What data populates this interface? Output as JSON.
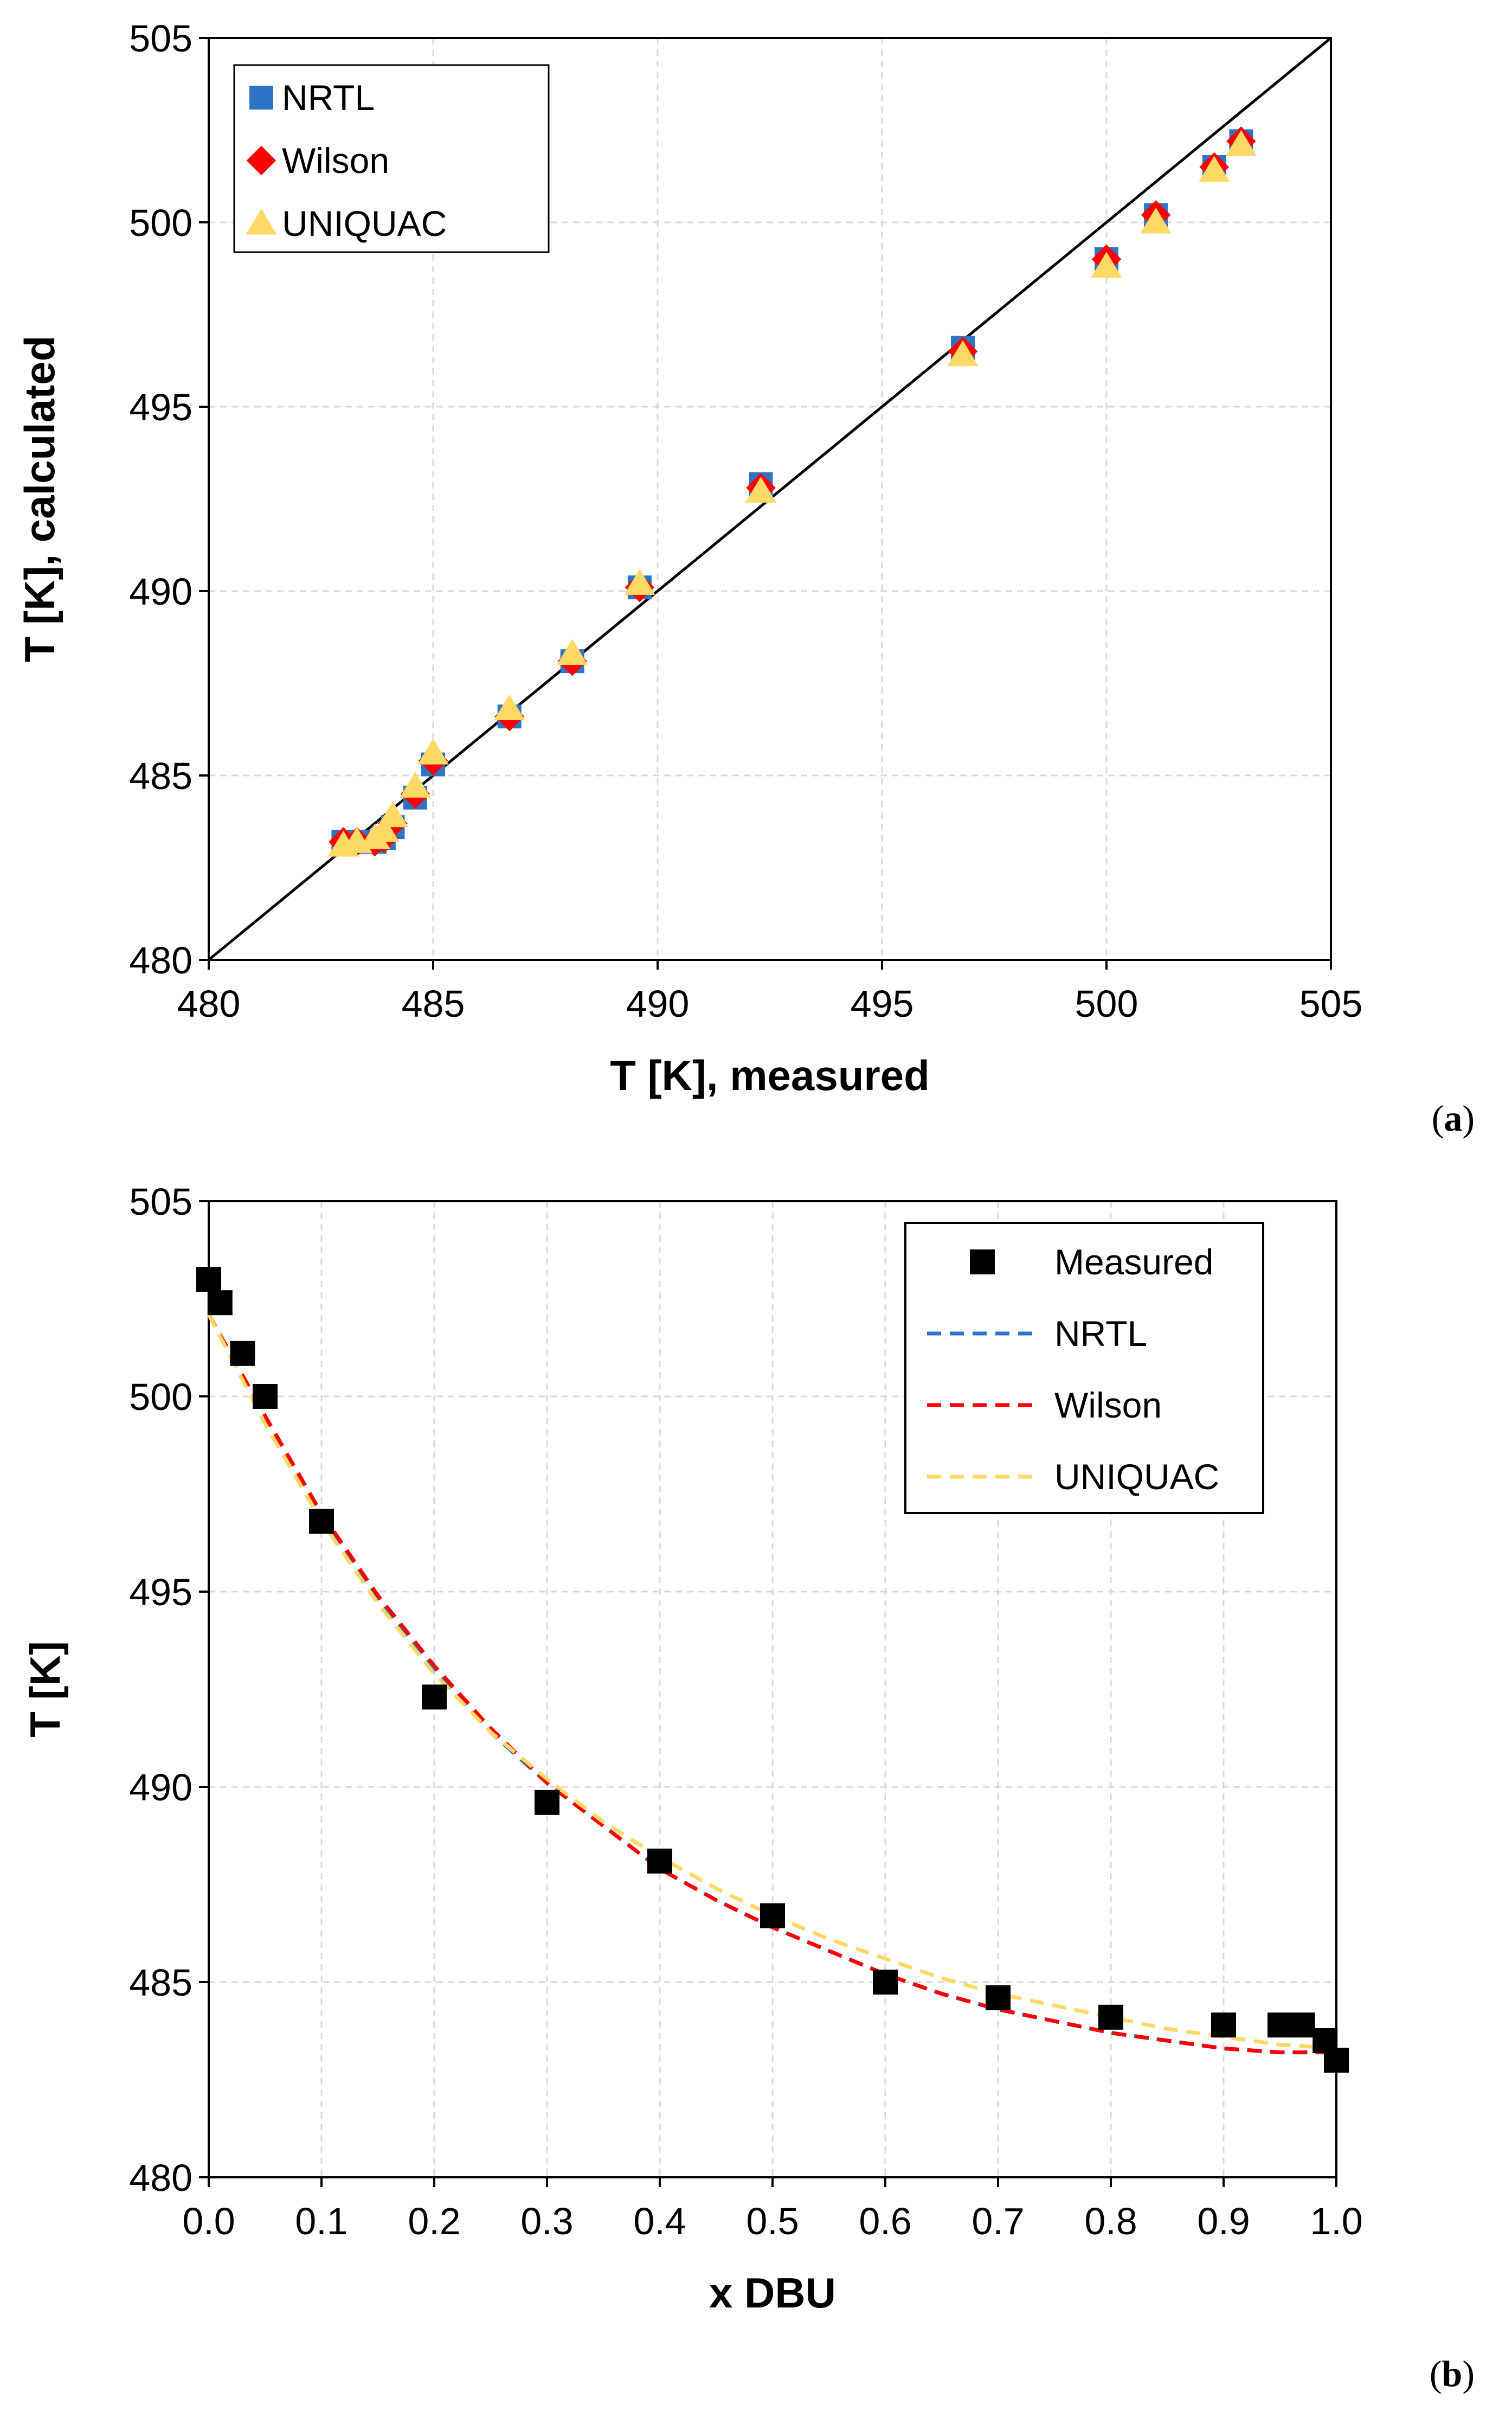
{
  "chart_data": [
    {
      "type": "scatter",
      "panel_label": "a",
      "xlabel": "T [K], measured",
      "ylabel": "T [K], calculated",
      "xlim": [
        480,
        505
      ],
      "ylim": [
        480,
        505
      ],
      "xticks": [
        "480",
        "485",
        "490",
        "495",
        "500",
        "505"
      ],
      "yticks": [
        "480",
        "485",
        "490",
        "495",
        "500",
        "505"
      ],
      "grid": true,
      "legend_position": "top-left",
      "reference_line": {
        "x": [
          480,
          505
        ],
        "y": [
          480,
          505
        ],
        "color": "#000000"
      },
      "series": [
        {
          "name": "NRTL",
          "marker": "square",
          "color": "#2e75c6",
          "x": [
            483.0,
            483.3,
            483.7,
            483.9,
            484.1,
            484.6,
            485.0,
            486.7,
            488.1,
            489.6,
            492.3,
            496.8,
            500.0,
            501.1,
            502.4,
            503.0
          ],
          "y": [
            483.2,
            483.2,
            483.2,
            483.3,
            483.6,
            484.4,
            485.3,
            486.6,
            488.1,
            490.1,
            492.9,
            496.6,
            499.0,
            500.2,
            501.5,
            502.2
          ]
        },
        {
          "name": "Wilson",
          "marker": "diamond",
          "color": "#ff0000",
          "x": [
            483.0,
            483.3,
            483.7,
            483.9,
            484.1,
            484.6,
            485.0,
            486.7,
            488.1,
            489.6,
            492.3,
            496.8,
            500.0,
            501.1,
            502.4,
            503.0
          ],
          "y": [
            483.2,
            483.2,
            483.2,
            483.3,
            483.7,
            484.5,
            485.4,
            486.6,
            488.1,
            490.1,
            492.8,
            496.5,
            499.0,
            500.2,
            501.5,
            502.2
          ]
        },
        {
          "name": "UNIQUAC",
          "marker": "triangle",
          "color": "#ffd966",
          "x": [
            483.0,
            483.3,
            483.7,
            483.9,
            484.1,
            484.6,
            485.0,
            486.7,
            488.1,
            489.6,
            492.3,
            496.8,
            500.0,
            501.1,
            502.4,
            503.0
          ],
          "y": [
            483.1,
            483.2,
            483.3,
            483.5,
            483.9,
            484.7,
            485.6,
            486.8,
            488.3,
            490.2,
            492.7,
            496.4,
            498.8,
            500.0,
            501.4,
            502.1
          ]
        }
      ]
    },
    {
      "type": "line",
      "panel_label": "b",
      "xlabel": "x DBU",
      "ylabel": "T [K]",
      "xlim": [
        0,
        1
      ],
      "ylim": [
        480,
        505
      ],
      "xticks": [
        "0.0",
        "0.1",
        "0.2",
        "0.3",
        "0.4",
        "0.5",
        "0.6",
        "0.7",
        "0.8",
        "0.9",
        "1.0"
      ],
      "yticks": [
        "480",
        "485",
        "490",
        "495",
        "500",
        "505"
      ],
      "grid": true,
      "legend_position": "top-right",
      "series": [
        {
          "name": "Measured",
          "style": "marker",
          "marker": "square",
          "color": "#000000",
          "x": [
            0.0,
            0.01,
            0.03,
            0.05,
            0.1,
            0.2,
            0.3,
            0.4,
            0.5,
            0.6,
            0.7,
            0.8,
            0.9,
            0.95,
            0.97,
            0.99,
            1.0
          ],
          "y": [
            503.0,
            502.4,
            501.1,
            500.0,
            496.8,
            492.3,
            489.6,
            488.1,
            486.7,
            485.0,
            484.6,
            484.1,
            483.9,
            483.9,
            483.9,
            483.5,
            483.0
          ]
        },
        {
          "name": "NRTL",
          "style": "dashed",
          "color": "#2e75c6",
          "x": [
            0.0,
            0.05,
            0.1,
            0.15,
            0.2,
            0.25,
            0.3,
            0.35,
            0.4,
            0.45,
            0.5,
            0.55,
            0.6,
            0.65,
            0.7,
            0.75,
            0.8,
            0.85,
            0.9,
            0.95,
            1.0
          ],
          "y": [
            502.1,
            499.4,
            496.9,
            494.8,
            493.0,
            491.4,
            490.1,
            489.0,
            487.9,
            487.1,
            486.4,
            485.8,
            485.2,
            484.7,
            484.3,
            484.0,
            483.7,
            483.5,
            483.3,
            483.2,
            483.2
          ]
        },
        {
          "name": "Wilson",
          "style": "dashed",
          "color": "#ff0000",
          "x": [
            0.0,
            0.05,
            0.1,
            0.15,
            0.2,
            0.25,
            0.3,
            0.35,
            0.4,
            0.45,
            0.5,
            0.55,
            0.6,
            0.65,
            0.7,
            0.75,
            0.8,
            0.85,
            0.9,
            0.95,
            1.0
          ],
          "y": [
            502.1,
            499.5,
            497.0,
            494.9,
            493.1,
            491.5,
            490.1,
            489.0,
            487.9,
            487.1,
            486.4,
            485.8,
            485.2,
            484.7,
            484.3,
            484.0,
            483.7,
            483.5,
            483.3,
            483.2,
            483.2
          ]
        },
        {
          "name": "UNIQUAC",
          "style": "dashed",
          "color": "#ffd966",
          "x": [
            0.0,
            0.05,
            0.1,
            0.15,
            0.2,
            0.25,
            0.3,
            0.35,
            0.4,
            0.45,
            0.5,
            0.55,
            0.6,
            0.65,
            0.7,
            0.75,
            0.8,
            0.85,
            0.9,
            0.95,
            1.0
          ],
          "y": [
            502.1,
            499.3,
            496.8,
            494.7,
            492.9,
            491.4,
            490.2,
            489.1,
            488.2,
            487.4,
            486.7,
            486.1,
            485.6,
            485.1,
            484.7,
            484.4,
            484.1,
            483.8,
            483.6,
            483.4,
            483.3
          ]
        }
      ]
    }
  ]
}
